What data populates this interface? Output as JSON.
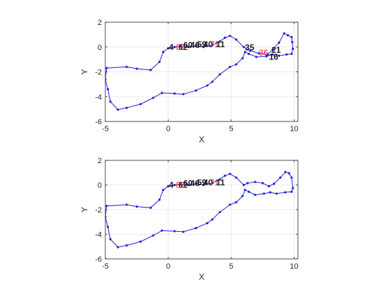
{
  "colors": {
    "line": "#1f1fdd",
    "annot_black": "#1a1a1a",
    "annot_red": "#d92020",
    "grid": "#e3e3e3",
    "axis": "#262626"
  },
  "chart_data": [
    {
      "type": "line",
      "title": "",
      "xlabel": "X",
      "ylabel": "Y",
      "xlim": [
        -5,
        10.3
      ],
      "ylim": [
        -6,
        2
      ],
      "xticks": [
        -5,
        0,
        5,
        10
      ],
      "yticks": [
        -6,
        -4,
        -2,
        0,
        2
      ],
      "grid": true,
      "series": [
        {
          "x": [
            0,
            0.5,
            1,
            1.6,
            2.2,
            2.8,
            3.5,
            4.1,
            4.5,
            4.9,
            5.4,
            6,
            6.5,
            7.2,
            7.9,
            8.3,
            8.8,
            9.2,
            9.5,
            9.8,
            9.85,
            9.9,
            9.8,
            9.4,
            8.8,
            8.3,
            7.8,
            7,
            6.4,
            6.1,
            5.9,
            5.4,
            4.9,
            4.1,
            3.5,
            3.1,
            2.2,
            1.2,
            0.5,
            -0.5,
            -1.2,
            -2.2,
            -3.3,
            -4,
            -4.6,
            -4.8,
            -5,
            -4.9,
            -3.3,
            -2.5,
            -1.4,
            -0.7,
            -0.4,
            0
          ],
          "y": [
            -0.1,
            0,
            0.05,
            0,
            0.1,
            0,
            0.15,
            0.45,
            0.75,
            0.9,
            0.6,
            0,
            -0.3,
            -0.5,
            -0.6,
            -0.2,
            0.35,
            1.1,
            0.95,
            0.8,
            0.4,
            -0.15,
            -0.55,
            -0.6,
            -0.7,
            -0.6,
            -0.75,
            -0.8,
            -0.55,
            -0.4,
            -0.9,
            -1.4,
            -1.6,
            -2.2,
            -2.8,
            -3.1,
            -3.5,
            -3.8,
            -3.75,
            -3.7,
            -4.1,
            -4.6,
            -4.9,
            -5.05,
            -4.4,
            -3.4,
            -2.6,
            -1.7,
            -1.6,
            -1.75,
            -1.85,
            -1.2,
            -0.4,
            -0.1
          ]
        }
      ],
      "annotations": [
        {
          "text": "4",
          "x": 0.05,
          "y": 0,
          "color": "black"
        },
        {
          "text": "62",
          "x": 0.8,
          "y": 0,
          "color": "black"
        },
        {
          "text": "66",
          "x": 0.6,
          "y": 0,
          "color": "red"
        },
        {
          "text": "60",
          "x": 1.2,
          "y": 0.15,
          "color": "black"
        },
        {
          "text": "46",
          "x": 1.75,
          "y": 0.15,
          "color": "black"
        },
        {
          "text": "59",
          "x": 2.3,
          "y": 0.2,
          "color": "black"
        },
        {
          "text": "40",
          "x": 2.8,
          "y": 0.2,
          "color": "black"
        },
        {
          "text": "71",
          "x": 3.3,
          "y": 0.2,
          "color": "red"
        },
        {
          "text": "11",
          "x": 3.8,
          "y": 0.2,
          "color": "black"
        },
        {
          "text": "35",
          "x": 6.1,
          "y": -0.05,
          "color": "black"
        },
        {
          "text": "36",
          "x": 7.2,
          "y": -0.45,
          "color": "red"
        },
        {
          "text": "21",
          "x": 8.2,
          "y": -0.25,
          "color": "black"
        },
        {
          "text": "16",
          "x": 8.0,
          "y": -0.8,
          "color": "black"
        }
      ]
    },
    {
      "type": "line",
      "title": "",
      "xlabel": "X",
      "ylabel": "Y",
      "xlim": [
        -5,
        10.3
      ],
      "ylim": [
        -6,
        2
      ],
      "xticks": [
        -5,
        0,
        5,
        10
      ],
      "yticks": [
        -6,
        -4,
        -2,
        0,
        2
      ],
      "grid": true,
      "series": [
        {
          "x": [
            0,
            0.5,
            1,
            1.6,
            2.2,
            2.8,
            3.5,
            4.1,
            4.5,
            4.9,
            5.4,
            6,
            6.3,
            6.9,
            7.5,
            8,
            8.4,
            8.9,
            9.3,
            9.6,
            9.8,
            9.9,
            9.8,
            9.3,
            8.6,
            8.1,
            7.6,
            6.9,
            6.4,
            6.1,
            5.9,
            5.4,
            4.9,
            4.1,
            3.5,
            3.1,
            2.2,
            1.2,
            0.5,
            -0.5,
            -1.2,
            -2.2,
            -3.3,
            -4,
            -4.6,
            -4.8,
            -5,
            -4.9,
            -3.3,
            -2.5,
            -1.4,
            -0.7,
            -0.4,
            0
          ],
          "y": [
            -0.1,
            0,
            0.05,
            0,
            0.1,
            0,
            0.15,
            0.45,
            0.75,
            0.9,
            0.6,
            0,
            0.15,
            0.25,
            0.15,
            -0.1,
            0.1,
            0.6,
            1.05,
            0.95,
            0.6,
            -0.25,
            -0.55,
            -0.6,
            -0.7,
            -0.6,
            -0.7,
            -0.8,
            -0.55,
            -0.4,
            -0.9,
            -1.4,
            -1.6,
            -2.2,
            -2.8,
            -3.1,
            -3.5,
            -3.8,
            -3.75,
            -3.7,
            -4.1,
            -4.6,
            -4.9,
            -5.05,
            -4.4,
            -3.4,
            -2.6,
            -1.7,
            -1.6,
            -1.75,
            -1.85,
            -1.2,
            -0.4,
            -0.1
          ]
        }
      ],
      "annotations": [
        {
          "text": "4",
          "x": 0.05,
          "y": 0,
          "color": "black"
        },
        {
          "text": "62",
          "x": 0.8,
          "y": 0,
          "color": "black"
        },
        {
          "text": "66",
          "x": 0.6,
          "y": 0,
          "color": "red"
        },
        {
          "text": "60",
          "x": 1.2,
          "y": 0.15,
          "color": "black"
        },
        {
          "text": "46",
          "x": 1.75,
          "y": 0.15,
          "color": "black"
        },
        {
          "text": "59",
          "x": 2.3,
          "y": 0.2,
          "color": "black"
        },
        {
          "text": "40",
          "x": 2.8,
          "y": 0.2,
          "color": "black"
        },
        {
          "text": "71",
          "x": 3.3,
          "y": 0.2,
          "color": "red"
        },
        {
          "text": "11",
          "x": 3.8,
          "y": 0.2,
          "color": "black"
        }
      ]
    }
  ]
}
